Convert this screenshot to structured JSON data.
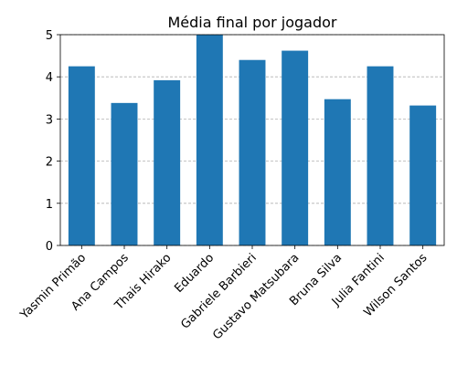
{
  "chart_data": {
    "type": "bar",
    "title": "Média final por jogador",
    "xlabel": "",
    "ylabel": "",
    "categories": [
      "Yasmin Primão",
      "Ana Campos",
      "Thais Hirako",
      "Eduardo",
      "Gabriele Barbieri",
      "Gustavo Matsubara",
      "Bruna Silva",
      "Julia Fantini",
      "Wilson Santos"
    ],
    "values": [
      4.25,
      3.38,
      3.92,
      5.0,
      4.4,
      4.62,
      3.47,
      4.25,
      3.32
    ],
    "ylim": [
      0,
      5
    ],
    "yticks": [
      0,
      1,
      2,
      3,
      4,
      5
    ],
    "grid": "y-dashed",
    "bar_color": "#1f77b4"
  }
}
